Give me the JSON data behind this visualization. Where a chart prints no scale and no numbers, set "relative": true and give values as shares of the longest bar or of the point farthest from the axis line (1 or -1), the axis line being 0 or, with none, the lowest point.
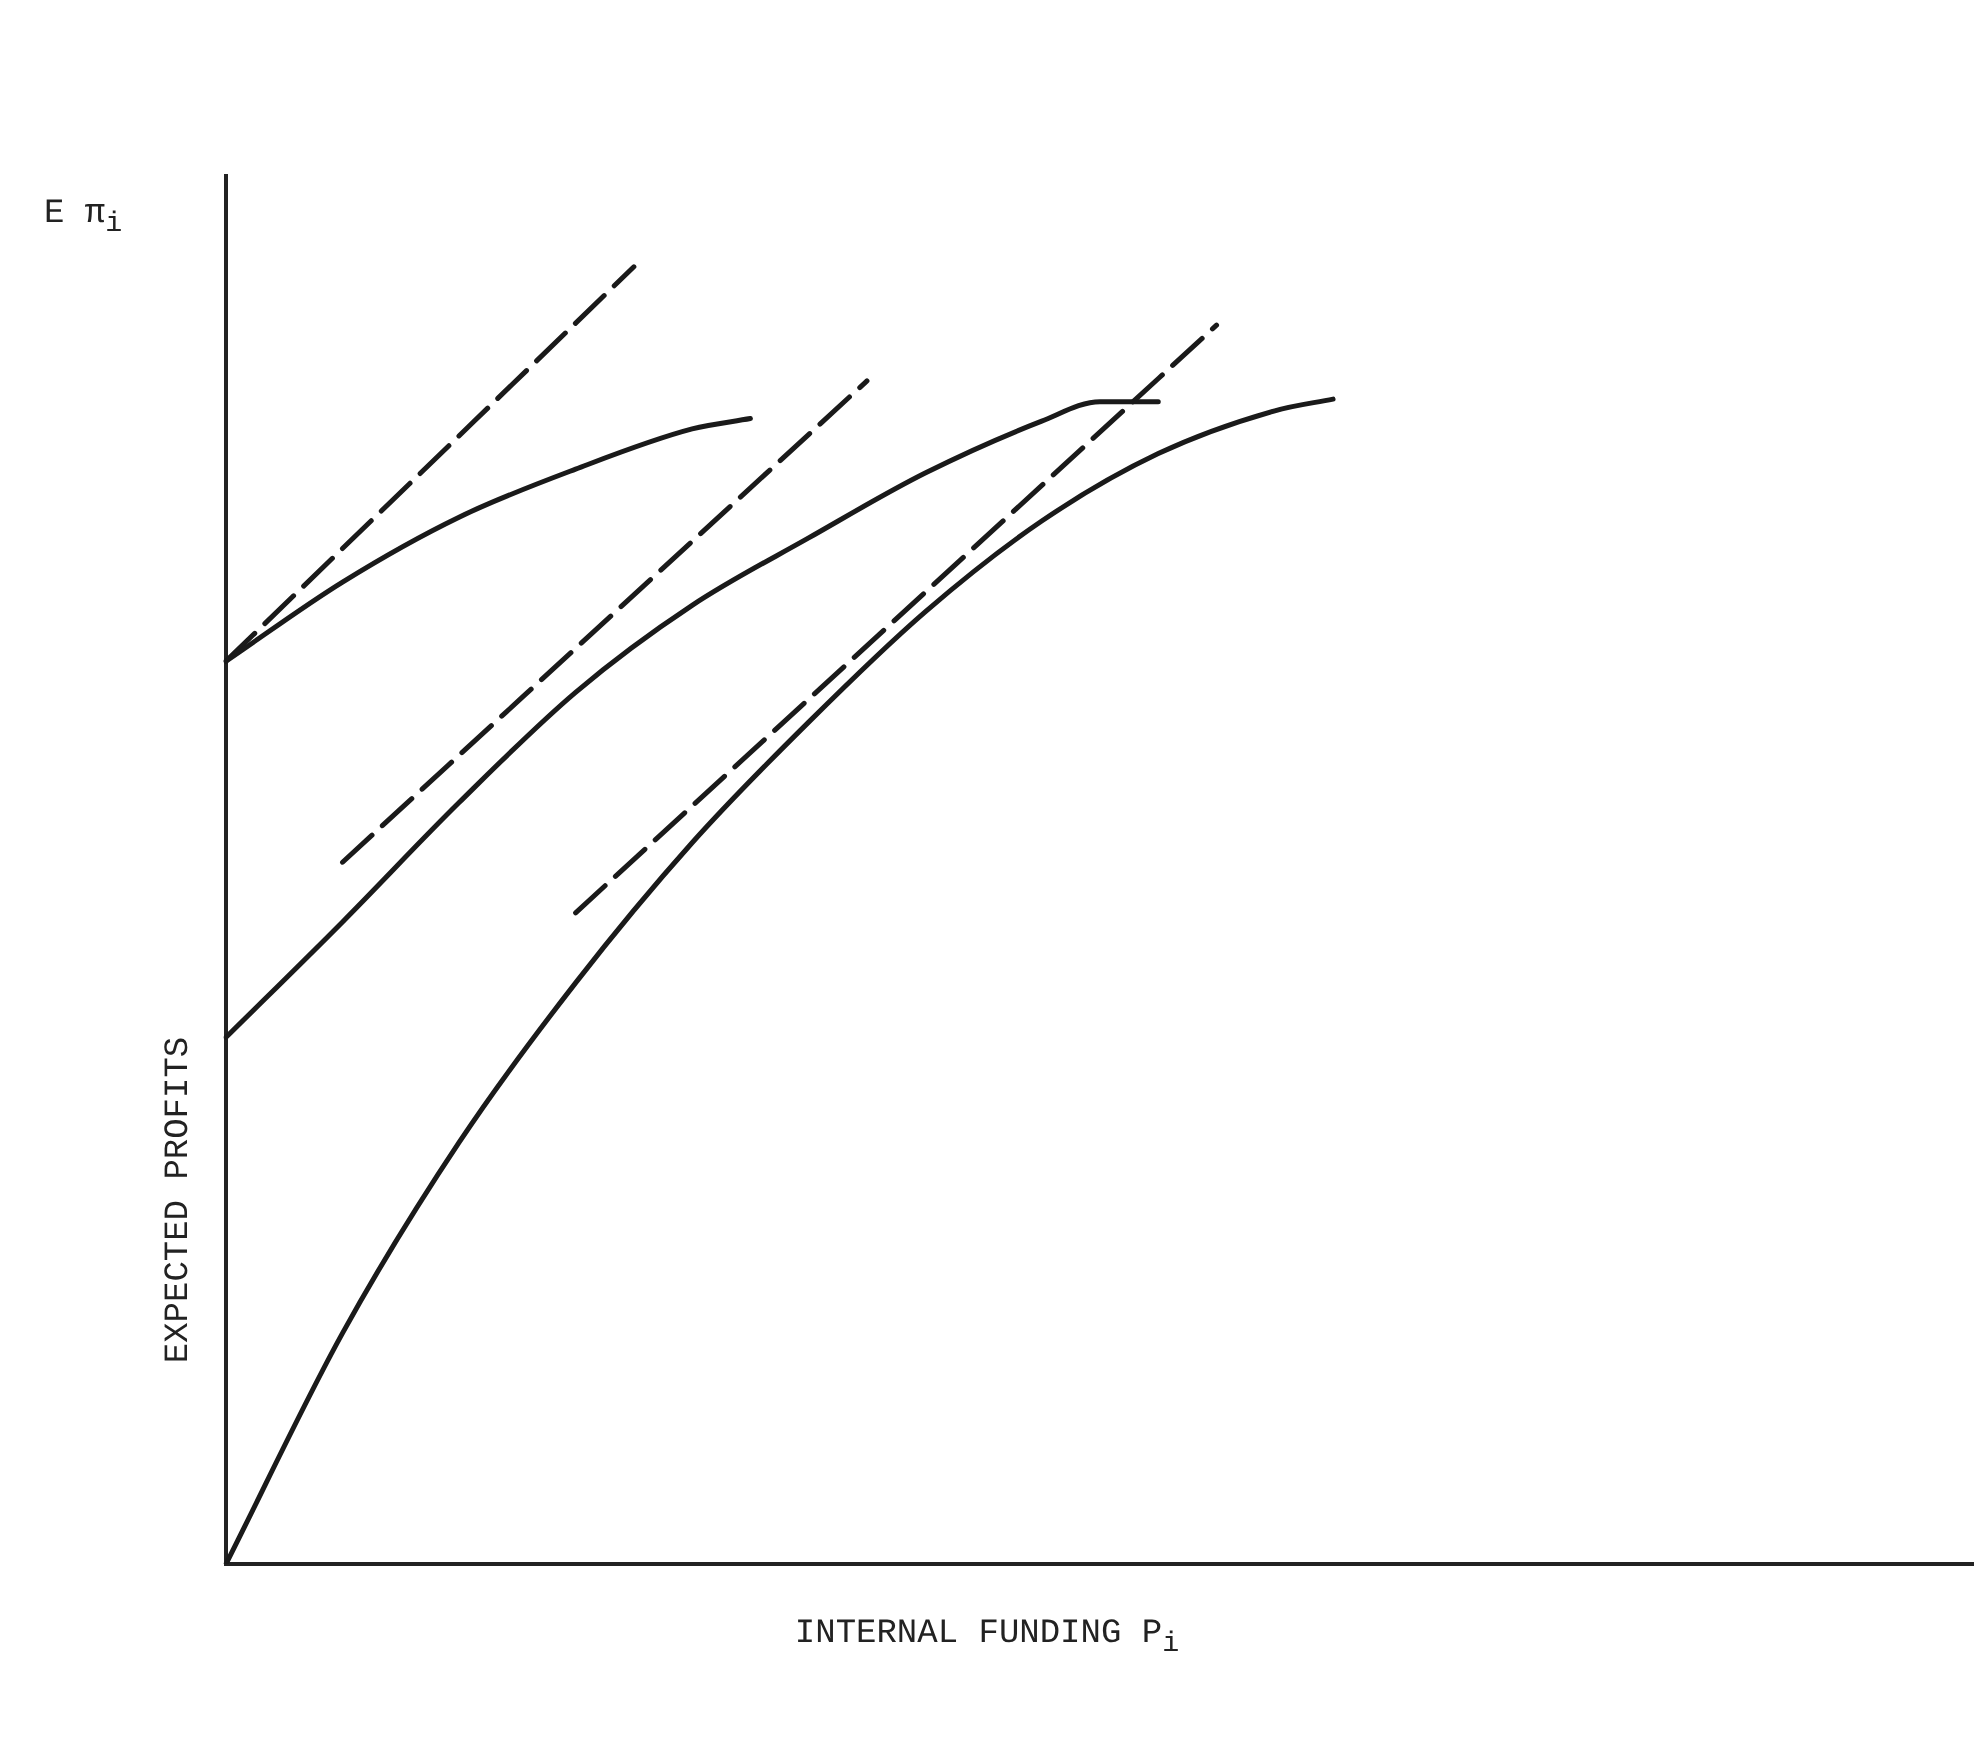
{
  "chart_data": {
    "type": "line",
    "relative": true,
    "xlabel": "INTERNAL FUNDING P$_{i}$",
    "ylabel": "EXPECTED PROFITS",
    "annotations": [
      "E π$_{i}$"
    ],
    "grid": false,
    "legend": false,
    "tick_labels": false,
    "marker": "none",
    "categories": [
      null,
      null,
      null,
      null,
      null,
      null,
      null,
      null,
      null,
      null,
      null,
      null,
      null,
      null,
      null,
      null,
      null,
      null,
      null,
      null,
      null,
      null,
      null,
      null,
      null,
      null,
      null,
      null,
      null,
      null,
      null
    ],
    "series": [
      {
        "color": "#1a1a1a",
        "line_style": "solid",
        "values": [
          0.696,
          null,
          0.757,
          null,
          0.807,
          null,
          0.844,
          null,
          0.875,
          0.883,
          null,
          null,
          null,
          null,
          null,
          null,
          null,
          null,
          null,
          null,
          null,
          null,
          null,
          null,
          null,
          null,
          null,
          null,
          null,
          null,
          null
        ]
      },
      {
        "color": "#1a1a1a",
        "line_style": "dashed",
        "values": [
          0.696,
          null,
          null,
          null,
          null,
          null,
          null,
          1,
          null,
          null,
          null,
          null,
          null,
          null,
          null,
          null,
          null,
          null,
          null,
          null,
          null,
          null,
          null,
          null,
          null,
          null,
          null,
          null,
          null,
          null,
          null
        ]
      },
      {
        "color": "#1a1a1a",
        "line_style": "solid",
        "values": [
          0.406,
          null,
          0.495,
          null,
          0.587,
          null,
          0.672,
          null,
          0.739,
          null,
          0.791,
          null,
          0.841,
          null,
          0.881,
          0.896,
          0.896,
          null,
          null,
          null,
          null,
          null,
          null,
          null,
          null,
          null,
          null,
          null,
          null,
          null,
          null
        ]
      },
      {
        "color": "#1a1a1a",
        "line_style": "dashed",
        "values": [
          null,
          null,
          0.541,
          null,
          null,
          null,
          null,
          null,
          null,
          null,
          null,
          0.912,
          null,
          null,
          null,
          null,
          null,
          null,
          null,
          null,
          null,
          null,
          null,
          null,
          null,
          null,
          null,
          null,
          null,
          null,
          null
        ]
      },
      {
        "color": "#1a1a1a",
        "line_style": "solid",
        "values": [
          0,
          null,
          0.178,
          null,
          0.325,
          null,
          0.448,
          null,
          0.556,
          null,
          0.649,
          null,
          0.734,
          null,
          0.804,
          null,
          0.856,
          null,
          0.889,
          0.898,
          null,
          null,
          null,
          null,
          null,
          null,
          null,
          null,
          null,
          null,
          null
        ]
      },
      {
        "color": "#1a1a1a",
        "line_style": "dashed",
        "values": [
          null,
          null,
          null,
          null,
          null,
          null,
          0.502,
          null,
          null,
          null,
          null,
          null,
          null,
          null,
          null,
          null,
          null,
          0.955,
          null,
          null,
          null,
          null,
          null,
          null,
          null,
          null,
          null,
          null,
          null,
          null,
          null
        ]
      }
    ]
  }
}
